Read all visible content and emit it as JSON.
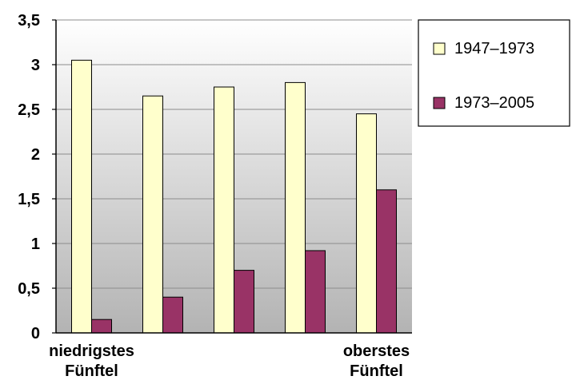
{
  "chart_data": {
    "type": "bar",
    "categories": [
      [
        "niedrigstes",
        "Fünftel"
      ],
      [
        "",
        ""
      ],
      [
        "",
        ""
      ],
      [
        "",
        ""
      ],
      [
        "oberstes",
        "Fünftel"
      ]
    ],
    "series": [
      {
        "name": "1947–1973",
        "values": [
          3.05,
          2.65,
          2.75,
          2.8,
          2.45
        ],
        "color": "#ffffcc"
      },
      {
        "name": "1973–2005",
        "values": [
          0.15,
          0.4,
          0.7,
          0.92,
          1.6
        ],
        "color": "#993366"
      }
    ],
    "yticks": [
      "0",
      "0,5",
      "1",
      "1,5",
      "2",
      "2,5",
      "3",
      "3,5"
    ],
    "ylim": [
      0,
      3.5
    ],
    "title": "",
    "xlabel": "",
    "ylabel": "",
    "grid": true,
    "legend": "right",
    "plot_background": "gradient white to gray"
  }
}
